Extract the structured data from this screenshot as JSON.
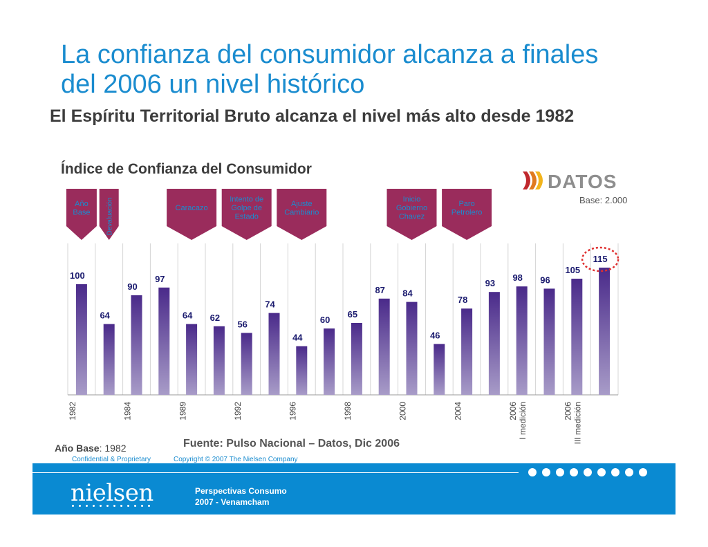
{
  "slide": {
    "title_line1": "La confianza del consumidor alcanza a finales",
    "title_line2": "del 2006 un nivel histórico",
    "subtitle": "El Espíritu Territorial Bruto alcanza el nivel más alto desde 1982",
    "logo_text": "DATOS",
    "base_note": "Base: 2.000",
    "footer_base_label": "Año Base",
    "footer_base_value": ": 1982",
    "source": "Fuente: Pulso Nacional – Datos, Dic 2006",
    "confidential": "Confidential & Proprietary",
    "copyright": "Copyright © 2007 The Nielsen Company",
    "brand": "nielsen",
    "perspectives_line1": "Perspectivas Consumo",
    "perspectives_line2": "2007 - Venamcham"
  },
  "colors": {
    "title": "#1a8ccf",
    "bar_top": "#4a2a8a",
    "bar_bottom": "#a89cc8",
    "event_banner": "#9a2c5c",
    "event_text": "#1a8ccf",
    "band": "#0a8ad2",
    "highlight_circle": "#e03030",
    "value_label": "#1a1a6e"
  },
  "chart_data": {
    "type": "bar",
    "title": "Índice de Confianza del Consumidor",
    "values": [
      100,
      64,
      90,
      97,
      64,
      62,
      56,
      74,
      44,
      60,
      65,
      87,
      84,
      46,
      78,
      93,
      98,
      96,
      105,
      115
    ],
    "tick_labels": [
      {
        "index": 0,
        "label": "1982"
      },
      {
        "index": 2,
        "label": "1984"
      },
      {
        "index": 4,
        "label": "1989"
      },
      {
        "index": 6,
        "label": "1992"
      },
      {
        "index": 8,
        "label": "1996"
      },
      {
        "index": 10,
        "label": "1998"
      },
      {
        "index": 12,
        "label": "2000"
      },
      {
        "index": 14,
        "label": "2004"
      },
      {
        "index": 16,
        "label": "2006",
        "label2": "I medición"
      },
      {
        "index": 18,
        "label": "2006",
        "label2": "III medición"
      }
    ],
    "ylim": [
      0,
      120
    ],
    "grid": "vertical",
    "highlight_index": 19,
    "events": [
      {
        "index": 0,
        "lines": [
          "Año",
          "Base"
        ]
      },
      {
        "index": 1,
        "lines": [
          "Devaluación"
        ],
        "vertical": true
      },
      {
        "index": 4,
        "lines": [
          "Caracazo"
        ]
      },
      {
        "index": 6,
        "lines": [
          "Intento de",
          "Golpe de",
          "Estado"
        ]
      },
      {
        "index": 8,
        "lines": [
          "Ajuste",
          "Cambiario"
        ]
      },
      {
        "index": 12,
        "lines": [
          "Inicio",
          "Gobierno",
          "Chavez"
        ]
      },
      {
        "index": 14,
        "lines": [
          "Paro",
          "Petrolero"
        ]
      }
    ]
  }
}
